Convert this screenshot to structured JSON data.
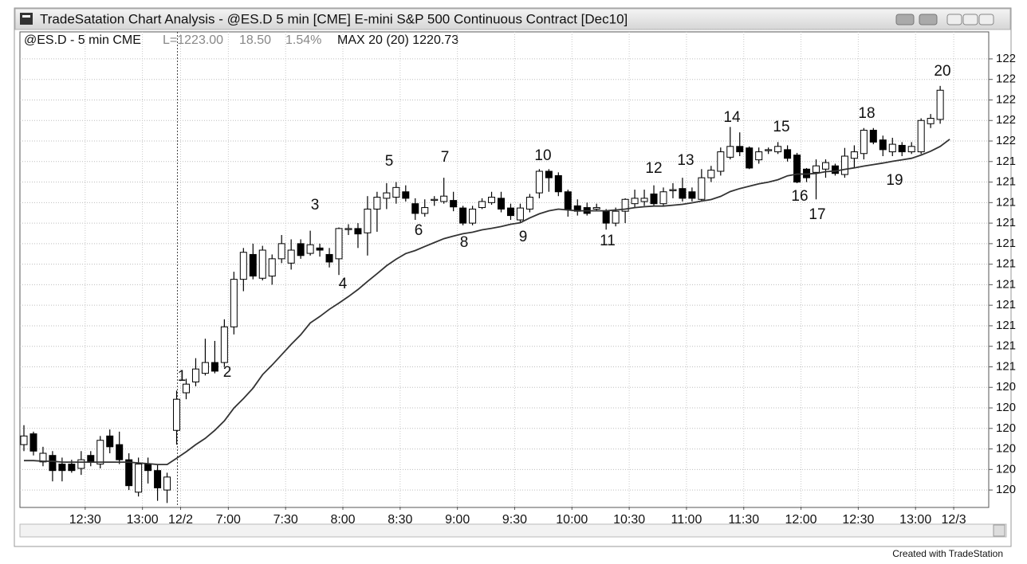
{
  "chart_data": {
    "type": "candlestick",
    "window_title": "TradeSatation Chart Analysis - @ES.D 5 min [CME] E-mini S&P 500 Continuous Contract [Dec10]",
    "symbol": "@ES.D - 5 min CME",
    "last": "L=1223.00",
    "change": "18.50",
    "change_pct": "1.54%",
    "indicator": "MAX 20 (20) 1220.73",
    "footer": "Created with TradeStation",
    "up_color": "#ffffff",
    "down_color": "#000000",
    "ma_color": "#333333",
    "grid": true,
    "categories": [
      null,
      null,
      null,
      null,
      null,
      null,
      "12:30",
      null,
      null,
      null,
      null,
      null,
      "13:00",
      null,
      null,
      null,
      "12/2",
      null,
      null,
      null,
      null,
      "7:00",
      null,
      null,
      null,
      null,
      null,
      "7:30",
      null,
      null,
      null,
      null,
      null,
      "8:00",
      null,
      null,
      null,
      null,
      null,
      "8:30",
      null,
      null,
      null,
      null,
      null,
      "9:00",
      null,
      null,
      null,
      null,
      null,
      "9:30",
      null,
      null,
      null,
      null,
      null,
      "10:00",
      null,
      null,
      null,
      null,
      null,
      "10:30",
      null,
      null,
      null,
      null,
      null,
      "11:00",
      null,
      null,
      null,
      null,
      null,
      "11:30",
      null,
      null,
      null,
      null,
      null,
      "12:00",
      null,
      null,
      null,
      null,
      null,
      "12:30",
      null,
      null,
      null,
      null,
      null,
      "13:00",
      null,
      null,
      null,
      "12/3"
    ],
    "open": [
      1206.6,
      1207.1,
      1205.8,
      1206.1,
      1205.7,
      1205.7,
      1205.5,
      1206.1,
      1205.7,
      1207.0,
      1206.6,
      1205.9,
      1204.4,
      1205.7,
      1205.4,
      1204.5,
      1207.26,
      1209.0,
      1209.5,
      1209.9,
      1210.4,
      1210.4,
      1212.05,
      1214.25,
      1215.4,
      1214.3,
      1214.4,
      1215.2,
      1215.0,
      1215.9,
      1215.45,
      1215.7,
      1215.4,
      1215.2,
      1216.55,
      1216.6,
      1216.4,
      1217.5,
      1218.0,
      1218.05,
      1218.3,
      1217.75,
      1217.3,
      1217.9,
      1217.85,
      1217.9,
      1217.55,
      1216.85,
      1217.57,
      1217.8,
      1218.0,
      1217.55,
      1217.0,
      1217.5,
      1218.25,
      1219.25,
      1219.05,
      1218.3,
      1217.65,
      1217.57,
      1217.5,
      1217.4,
      1216.85,
      1217.4,
      1217.75,
      1217.85,
      1218.2,
      1217.75,
      1218.35,
      1218.45,
      1218.3,
      1217.95,
      1218.95,
      1219.25,
      1219.9,
      1220.4,
      1220.33,
      1219.78,
      1220.2,
      1220.15,
      1220.25,
      1220.0,
      1219.35,
      1219.2,
      1219.35,
      1219.5,
      1219.1,
      1219.85,
      1220.07,
      1221.15,
      1220.7,
      1220.15,
      1220.45,
      1220.15,
      1220.15,
      1221.45,
      1221.65,
      null
    ],
    "high": [
      1207.5,
      1207.2,
      1206.5,
      1206.3,
      1206.0,
      1205.9,
      1206.3,
      1206.3,
      1207.0,
      1207.3,
      1207.2,
      1206.2,
      1206.0,
      1206.0,
      1205.7,
      1205.3,
      1209.1,
      1209.65,
      1210.6,
      1211.5,
      1211.4,
      1212.4,
      1214.6,
      1215.7,
      1215.9,
      1215.8,
      1215.4,
      1216.3,
      1216.1,
      1216.1,
      1216.5,
      1215.9,
      1215.7,
      1216.65,
      1216.8,
      1216.85,
      1218.1,
      1218.3,
      1218.7,
      1218.75,
      1218.6,
      1218.0,
      1217.95,
      1218.1,
      1218.95,
      1218.3,
      1217.65,
      1217.65,
      1218.0,
      1218.3,
      1218.3,
      1217.75,
      1217.75,
      1218.2,
      1219.35,
      1219.35,
      1219.2,
      1218.4,
      1217.95,
      1217.8,
      1217.75,
      1217.5,
      1217.57,
      1218.0,
      1218.4,
      1218.4,
      1218.6,
      1218.5,
      1218.7,
      1218.95,
      1218.5,
      1219.35,
      1219.5,
      1220.35,
      1221.3,
      1221.05,
      1220.4,
      1220.35,
      1220.35,
      1220.6,
      1220.45,
      1220.1,
      1219.4,
      1219.8,
      1219.8,
      1219.6,
      1220.33,
      1220.45,
      1221.25,
      1221.25,
      1220.9,
      1220.8,
      1220.6,
      1220.6,
      1221.7,
      1221.9,
      1223.2,
      null
    ],
    "low": [
      1206.3,
      1206.1,
      1205.6,
      1204.9,
      1204.9,
      1205.3,
      1205.2,
      1205.6,
      1205.5,
      1206.2,
      1205.7,
      1204.5,
      1204.2,
      1204.8,
      1204.0,
      1203.9,
      1206.6,
      1208.7,
      1209.3,
      1209.8,
      1209.9,
      1210.2,
      1211.7,
      1213.7,
      1214.25,
      1214.2,
      1214.0,
      1215.0,
      1214.7,
      1215.2,
      1215.35,
      1215.3,
      1214.8,
      1214.45,
      1216.3,
      1215.7,
      1215.35,
      1216.45,
      1217.5,
      1217.75,
      1217.85,
      1217.0,
      1217.15,
      1217.65,
      1217.75,
      1217.4,
      1216.75,
      1216.75,
      1217.5,
      1217.7,
      1217.35,
      1217.0,
      1216.9,
      1217.35,
      1218.0,
      1218.3,
      1218.1,
      1217.15,
      1217.2,
      1217.2,
      1217.4,
      1216.55,
      1216.7,
      1216.85,
      1217.57,
      1217.65,
      1217.65,
      1217.65,
      1218.0,
      1217.85,
      1217.85,
      1217.85,
      1218.75,
      1219.05,
      1219.8,
      1219.95,
      1219.35,
      1219.6,
      1220.05,
      1220.05,
      1219.7,
      1218.7,
      1218.75,
      1217.95,
      1218.95,
      1219.05,
      1218.95,
      1219.4,
      1219.8,
      1220.5,
      1219.95,
      1219.95,
      1219.95,
      1220.05,
      1220.05,
      1221.25,
      1221.45,
      null
    ],
    "close": [
      1207.0,
      1206.3,
      1206.2,
      1205.4,
      1205.4,
      1205.4,
      1205.9,
      1205.8,
      1206.8,
      1206.5,
      1205.9,
      1204.7,
      1205.7,
      1205.4,
      1204.6,
      1205.1,
      1208.7,
      1209.4,
      1210.1,
      1210.4,
      1210.0,
      1212.05,
      1214.25,
      1215.5,
      1214.4,
      1215.6,
      1215.2,
      1215.9,
      1215.6,
      1215.35,
      1215.85,
      1215.6,
      1215.05,
      1216.6,
      1216.6,
      1216.35,
      1217.5,
      1218.05,
      1218.25,
      1218.5,
      1218.0,
      1217.3,
      1217.57,
      1217.95,
      1218.1,
      1217.6,
      1216.85,
      1217.5,
      1217.85,
      1218.05,
      1217.5,
      1217.2,
      1217.55,
      1218.05,
      1219.25,
      1218.95,
      1218.3,
      1217.5,
      1217.4,
      1217.3,
      1217.57,
      1216.85,
      1217.4,
      1217.95,
      1218.0,
      1218.0,
      1217.75,
      1218.3,
      1218.4,
      1218.0,
      1218.0,
      1218.95,
      1219.3,
      1220.15,
      1220.4,
      1220.15,
      1219.4,
      1220.15,
      1220.25,
      1220.4,
      1219.85,
      1218.75,
      1218.95,
      1219.5,
      1219.65,
      1219.15,
      1219.95,
      1220.15,
      1221.15,
      1220.6,
      1220.25,
      1220.5,
      1220.15,
      1220.4,
      1221.6,
      1221.7,
      1223.0,
      null
    ],
    "ma": [
      1205.86,
      1205.86,
      1205.83,
      1205.83,
      1205.79,
      1205.79,
      1205.79,
      1205.79,
      1205.79,
      1205.79,
      1205.79,
      1205.79,
      1205.75,
      1205.72,
      1205.68,
      1205.68,
      1205.97,
      1206.27,
      1206.6,
      1206.89,
      1207.26,
      1207.7,
      1208.29,
      1208.73,
      1209.21,
      1209.84,
      1210.28,
      1210.76,
      1211.24,
      1211.68,
      1212.23,
      1212.53,
      1212.86,
      1213.15,
      1213.45,
      1213.78,
      1214.15,
      1214.51,
      1214.88,
      1215.18,
      1215.44,
      1215.58,
      1215.77,
      1215.95,
      1216.13,
      1216.25,
      1216.36,
      1216.43,
      1216.54,
      1216.61,
      1216.69,
      1216.8,
      1216.87,
      1217.09,
      1217.28,
      1217.42,
      1217.5,
      1217.46,
      1217.42,
      1217.42,
      1217.42,
      1217.42,
      1217.46,
      1217.5,
      1217.57,
      1217.61,
      1217.64,
      1217.64,
      1217.68,
      1217.72,
      1217.79,
      1217.87,
      1217.94,
      1218.09,
      1218.31,
      1218.45,
      1218.56,
      1218.67,
      1218.75,
      1218.86,
      1219.04,
      1219.12,
      1219.12,
      1219.15,
      1219.23,
      1219.26,
      1219.34,
      1219.41,
      1219.49,
      1219.56,
      1219.63,
      1219.71,
      1219.78,
      1219.85,
      1220.0,
      1220.18,
      1220.4,
      1220.73,
      null
    ],
    "annotations": [
      "1",
      "2",
      "3",
      "4",
      "5",
      "6",
      "7",
      "8",
      "9",
      "10",
      "11",
      "12",
      "13",
      "14",
      "15",
      "16",
      "17",
      "18",
      "19",
      "20"
    ],
    "ylim": [
      1203.73,
      1224.89
    ],
    "yticks": [
      {
        "value": 1204.5,
        "label": "120"
      },
      {
        "value": 1205.45,
        "label": "120"
      },
      {
        "value": 1206.4,
        "label": "120"
      },
      {
        "value": 1207.35,
        "label": "120"
      },
      {
        "value": 1208.3,
        "label": "120"
      },
      {
        "value": 1209.25,
        "label": "120"
      },
      {
        "value": 1210.2,
        "label": "121"
      },
      {
        "value": 1211.15,
        "label": "121"
      },
      {
        "value": 1212.1,
        "label": "121"
      },
      {
        "value": 1213.05,
        "label": "121"
      },
      {
        "value": 1214,
        "label": "121"
      },
      {
        "value": 1214.95,
        "label": "121"
      },
      {
        "value": 1215.9,
        "label": "121"
      },
      {
        "value": 1216.85,
        "label": "121"
      },
      {
        "value": 1217.8,
        "label": "121"
      },
      {
        "value": 1218.75,
        "label": "121"
      },
      {
        "value": 1219.7,
        "label": "121"
      },
      {
        "value": 1220.65,
        "label": "122"
      },
      {
        "value": 1221.6,
        "label": "122"
      },
      {
        "value": 1222.55,
        "label": "122"
      },
      {
        "value": 1223.5,
        "label": "122"
      },
      {
        "value": 1224.45,
        "label": "122"
      }
    ]
  }
}
